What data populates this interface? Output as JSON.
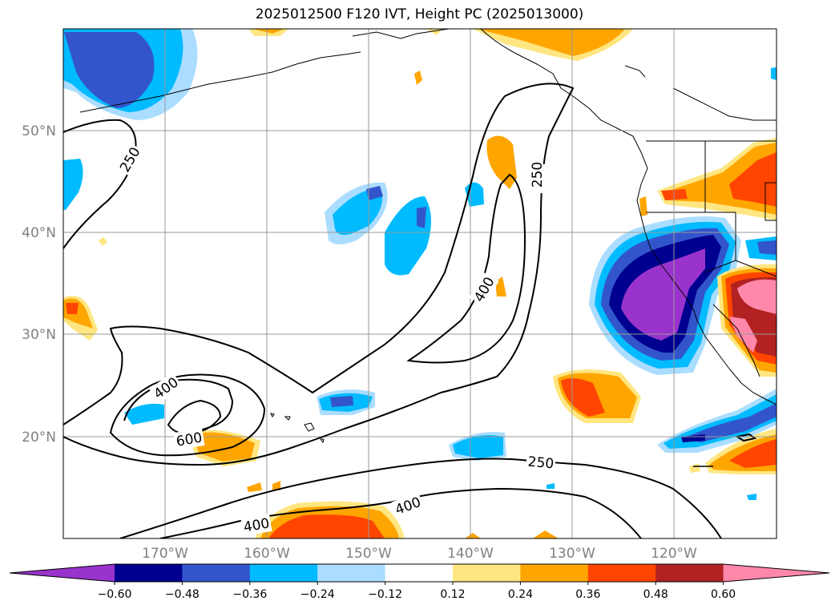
{
  "title": "2025012500 F120 IVT, Height PC (2025013000)",
  "axes": {
    "lat_labels": [
      "50°N",
      "40°N",
      "30°N",
      "20°N"
    ],
    "lon_labels": [
      "170°W",
      "160°W",
      "150°W",
      "140°W",
      "130°W",
      "120°W"
    ]
  },
  "contours": {
    "labels": [
      "250",
      "400",
      "250",
      "400",
      "600",
      "250",
      "400",
      "400"
    ],
    "line_color": "#000000"
  },
  "colorbar": {
    "ticks": [
      "−0.60",
      "−0.48",
      "−0.36",
      "−0.24",
      "−0.12",
      "0.12",
      "0.24",
      "0.36",
      "0.48",
      "0.60"
    ],
    "colors": [
      "#9933cc",
      "#000090",
      "#3355cc",
      "#00bbff",
      "#aaddff",
      "#ffffff",
      "#ffe680",
      "#ffa500",
      "#ff4500",
      "#b22222",
      "#ff88aa"
    ]
  }
}
